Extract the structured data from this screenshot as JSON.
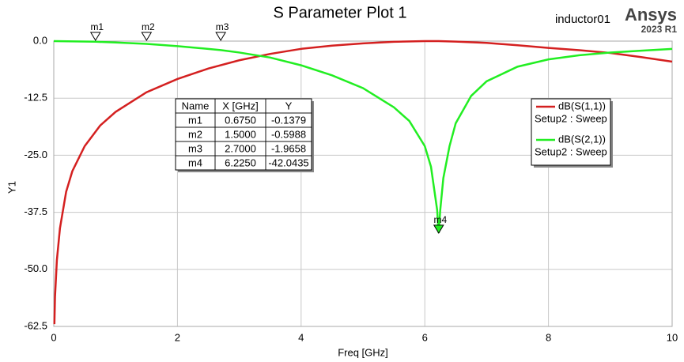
{
  "chart_data": {
    "type": "line",
    "title": "S Parameter Plot 1",
    "design_name": "inductor01",
    "brand": "Ansys",
    "version": "2023 R1",
    "x_label": "Freq [GHz]",
    "y_label": "Y1",
    "xlim": [
      0,
      10
    ],
    "ylim": [
      -62.5,
      0
    ],
    "xticks": [
      0,
      2,
      4,
      6,
      8,
      10
    ],
    "yticks": [
      {
        "value": 0,
        "label": "0.0"
      },
      -12.5,
      {
        "value": -25,
        "label": "-25.0"
      },
      -37.5,
      {
        "value": -50,
        "label": "-50.0"
      },
      -62.5
    ],
    "grid": true,
    "series": [
      {
        "name": "dB(S(1,1))",
        "sweep": "Setup2 : Sweep",
        "color": "#d42020",
        "x": [
          0.01,
          0.02,
          0.05,
          0.1,
          0.2,
          0.3,
          0.5,
          0.75,
          1,
          1.5,
          2,
          2.5,
          3,
          3.5,
          4,
          4.5,
          5,
          5.5,
          6,
          6.225,
          6.5,
          7,
          7.5,
          8,
          8.5,
          9,
          9.5,
          10
        ],
        "values": [
          -62,
          -56,
          -48,
          -41,
          -33,
          -28.5,
          -23,
          -18.5,
          -15.5,
          -11.2,
          -8.3,
          -6,
          -4.2,
          -2.8,
          -1.7,
          -1,
          -0.5,
          -0.15,
          0,
          0,
          -0.1,
          -0.4,
          -0.9,
          -1.5,
          -2,
          -2.6,
          -3.5,
          -4.5
        ]
      },
      {
        "name": "dB(S(2,1))",
        "sweep": "Setup2 : Sweep",
        "color": "#22ee22",
        "x": [
          0,
          0.675,
          1,
          1.5,
          2,
          2.7,
          3,
          3.5,
          4,
          4.5,
          5,
          5.5,
          5.75,
          6,
          6.1,
          6.2,
          6.225,
          6.25,
          6.3,
          6.4,
          6.5,
          6.75,
          7,
          7.5,
          8,
          8.5,
          9,
          9.5,
          10
        ],
        "values": [
          0,
          -0.1379,
          -0.3,
          -0.5988,
          -1.1,
          -1.9658,
          -2.5,
          -3.6,
          -5.3,
          -7.5,
          -10.3,
          -14.5,
          -17.5,
          -23,
          -27.5,
          -37,
          -42.0435,
          -37,
          -30,
          -23,
          -18,
          -12,
          -8.8,
          -5.6,
          -4,
          -3.1,
          -2.5,
          -2.1,
          -1.7
        ]
      }
    ],
    "marker_table_headers": [
      "Name",
      "X [GHz]",
      "Y"
    ],
    "markers": [
      {
        "name": "m1",
        "x": {
          "value": 0.675,
          "label": "0.6750"
        },
        "y": -0.1379
      },
      {
        "name": "m2",
        "x": {
          "value": 1.5,
          "label": "1.5000"
        },
        "y": -0.5988
      },
      {
        "name": "m3",
        "x": {
          "value": 2.7,
          "label": "2.7000"
        },
        "y": -1.9658
      },
      {
        "name": "m4",
        "x": {
          "value": 6.225,
          "label": "6.2250"
        },
        "y": -42.0435
      }
    ]
  }
}
